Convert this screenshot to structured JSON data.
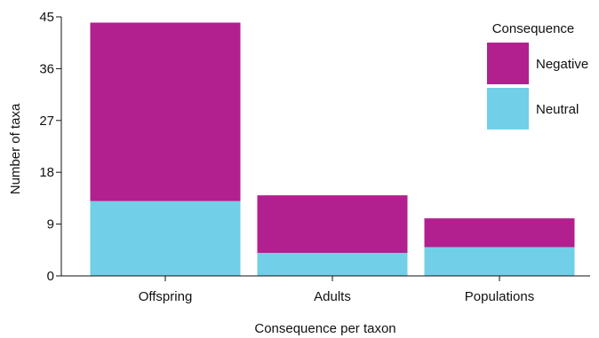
{
  "chart_data": {
    "type": "bar",
    "stacked": true,
    "categories": [
      "Offspring",
      "Adults",
      "Populations"
    ],
    "series": [
      {
        "name": "Neutral",
        "values": [
          13,
          4,
          5
        ],
        "color": "#72cfe8"
      },
      {
        "name": "Negative",
        "values": [
          31,
          10,
          5
        ],
        "color": "#b21f8f"
      }
    ],
    "title": "",
    "xlabel": "Consequence per taxon",
    "ylabel": "Number of taxa",
    "ylim": [
      0,
      45
    ],
    "yticks": [
      "0",
      "9",
      "18",
      "27",
      "36",
      "45"
    ],
    "grid": false,
    "legend": {
      "title": "Consequence",
      "position": "top-right",
      "entries": [
        "Negative",
        "Neutral"
      ]
    }
  }
}
